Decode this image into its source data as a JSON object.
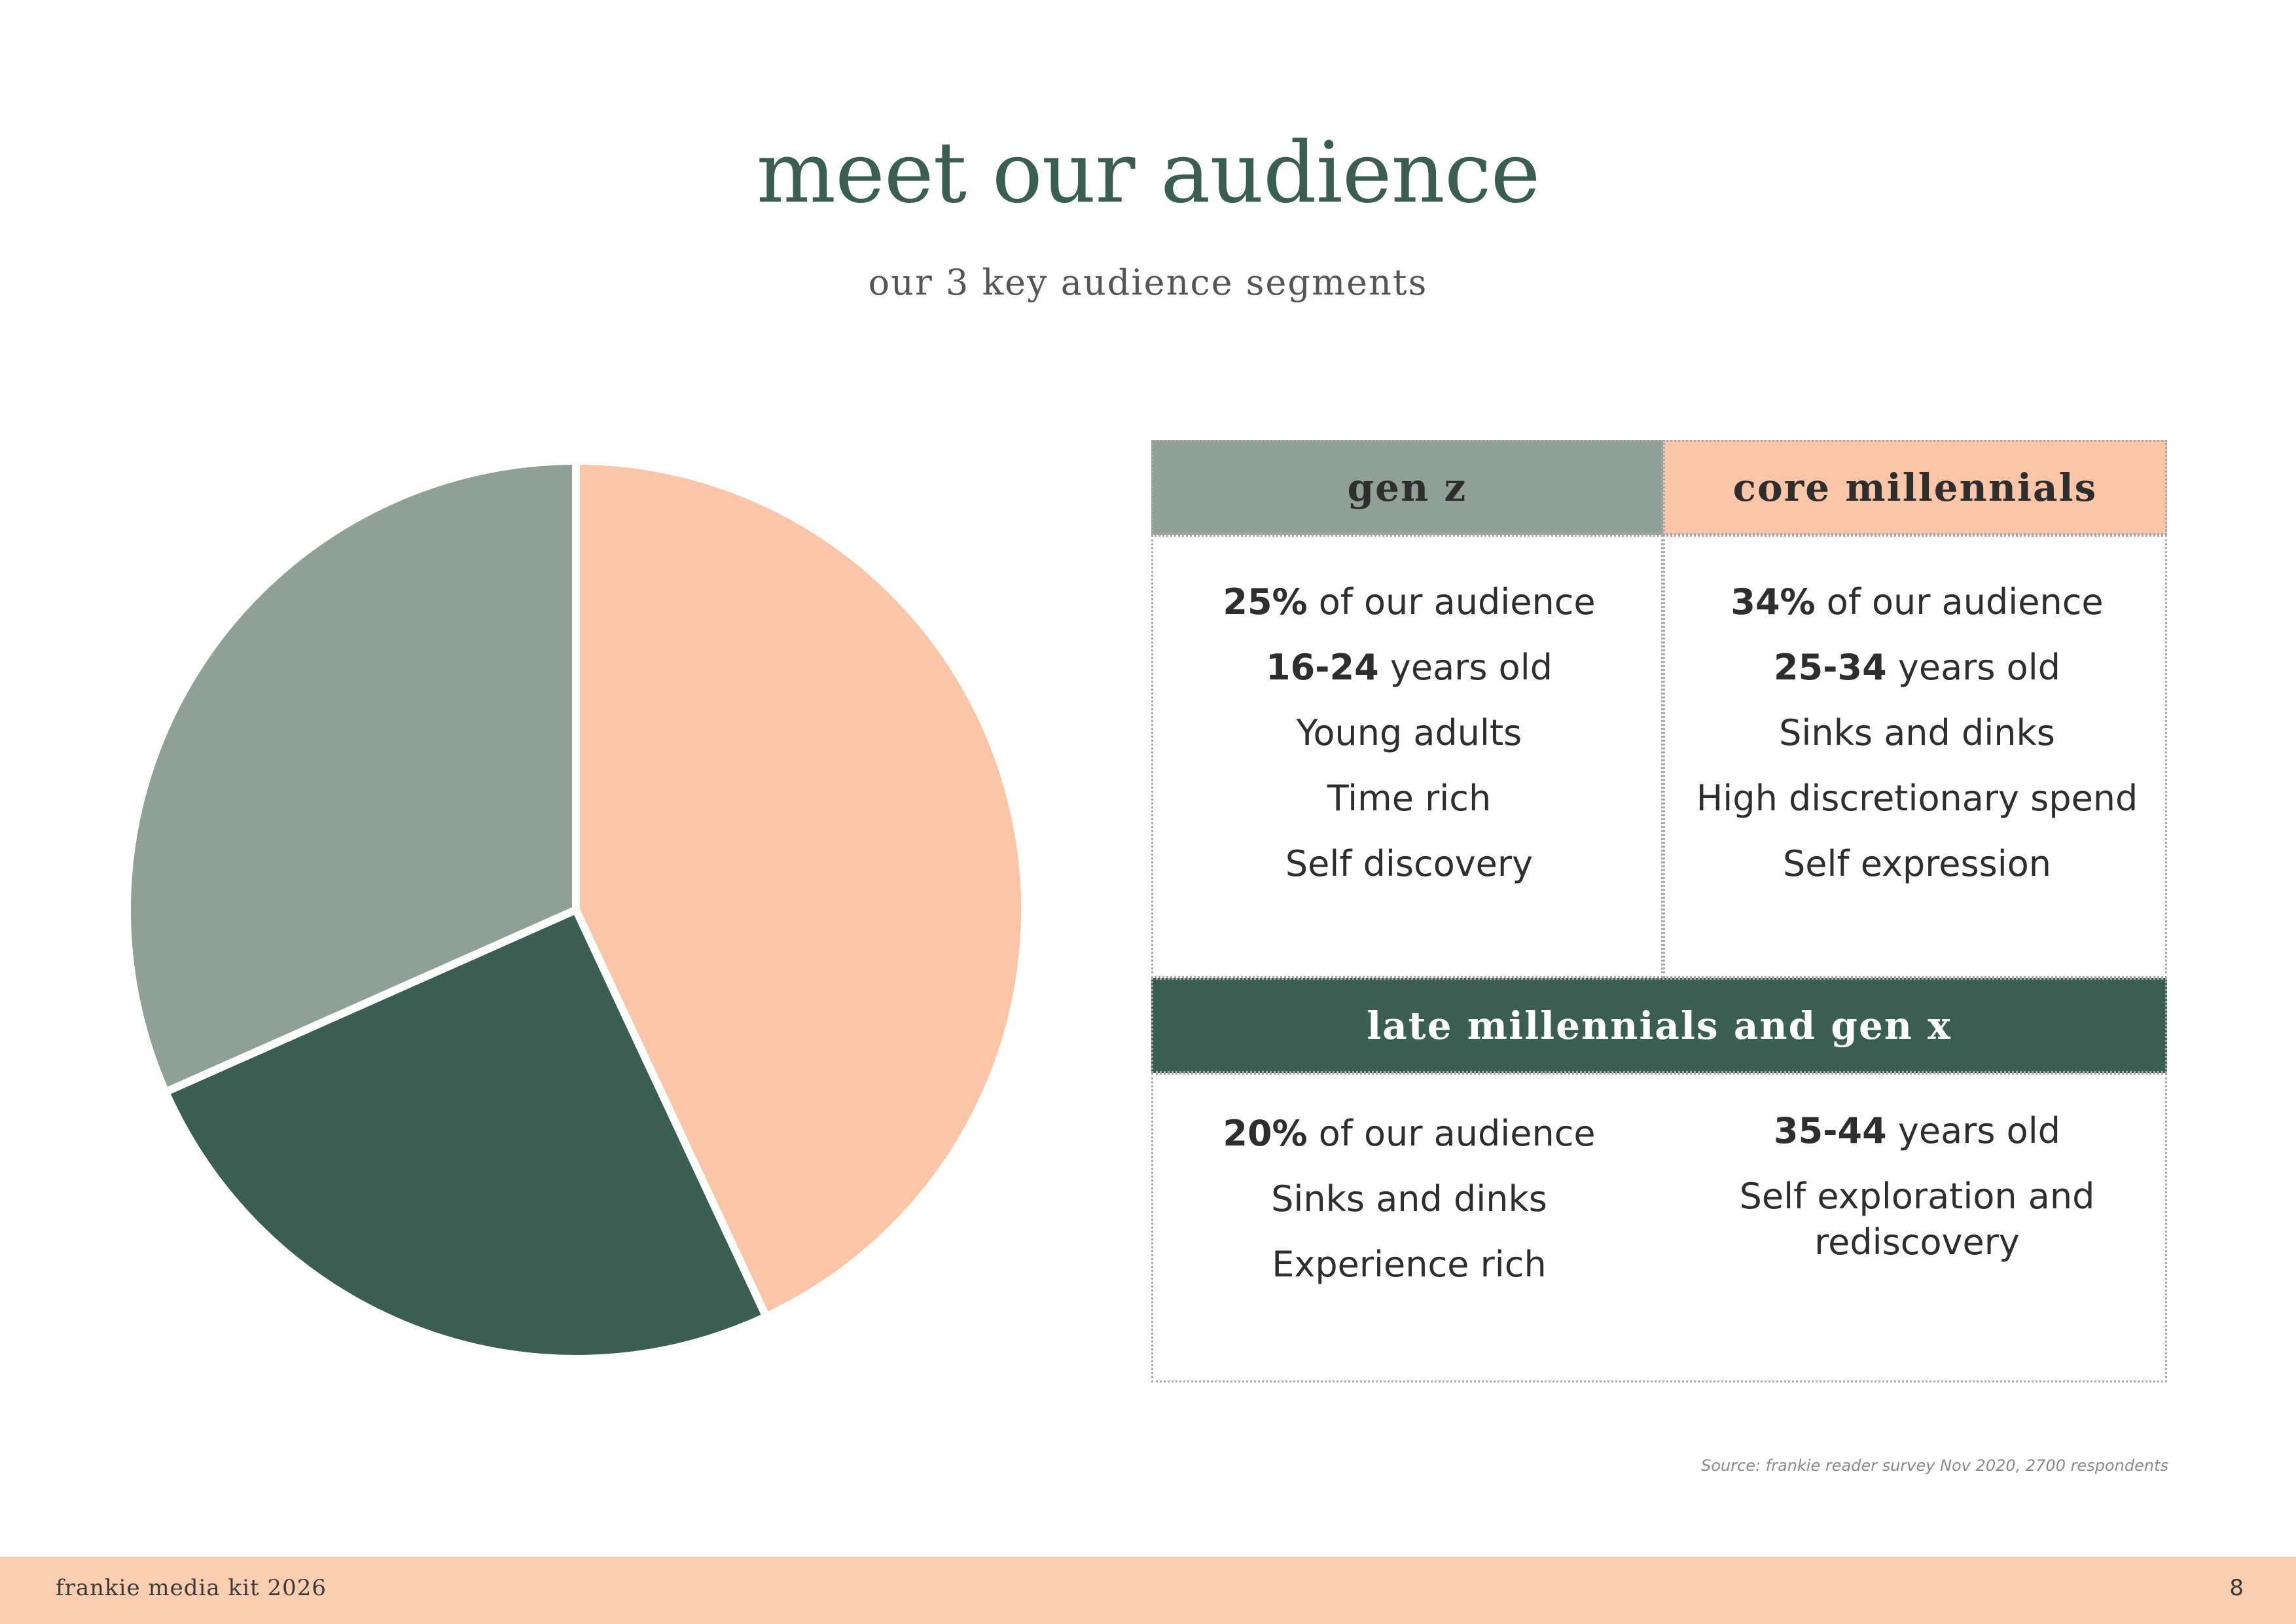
{
  "page": {
    "title": "meet our audience",
    "subtitle": "our 3 key audience segments"
  },
  "chart_data": {
    "type": "pie",
    "categories": [
      "core millennials",
      "late millennials and gen x",
      "gen z"
    ],
    "values": [
      34,
      20,
      25
    ],
    "colors": [
      "#fbc6a8",
      "#3b5e52",
      "#8fa196"
    ],
    "start_angle_deg": -90,
    "legend": "none",
    "title": "",
    "xlabel": "",
    "ylabel": ""
  },
  "segments": {
    "gen_z": {
      "header": "gen z",
      "share_value": "25%",
      "share_text": " of our audience",
      "age_value": "16-24",
      "age_text": " years old",
      "traits": [
        "Young adults",
        "Time rich",
        "Self discovery"
      ]
    },
    "core_millennials": {
      "header": "core millennials",
      "share_value": "34%",
      "share_text": " of our audience",
      "age_value": "25-34",
      "age_text": " years old",
      "traits": [
        "Sinks and dinks",
        "High discretionary spend",
        "Self expression"
      ]
    },
    "late_millennials": {
      "header": "late millennials and gen x",
      "share_value": "20%",
      "share_text": " of our audience",
      "traits_left": [
        "Sinks and dinks",
        "Experience rich"
      ],
      "age_value": "35-44",
      "age_text": " years old",
      "traits_right": [
        "Self exploration and",
        "rediscovery"
      ]
    }
  },
  "source": "Source: frankie reader survey Nov 2020, 2700 respondents",
  "footer": {
    "left": "frankie media kit 2026",
    "page_number": "8"
  }
}
